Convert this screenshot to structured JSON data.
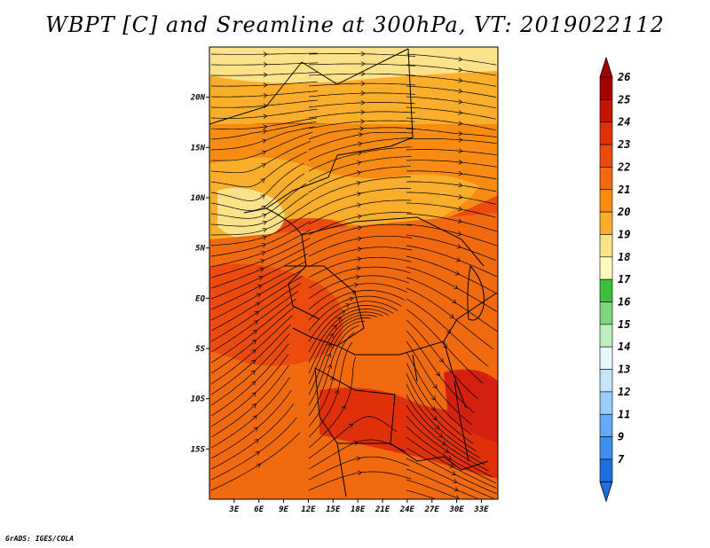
{
  "title": "WBPT [C] and Sreamline at 300hPa, VT: 2019022112",
  "footer": "GrADS: IGES/COLA",
  "chart_data": {
    "type": "heatmap",
    "variable": "WBPT [C]",
    "overlay": "streamlines",
    "level": "300hPa",
    "valid_time": "2019022112",
    "lon_range": [
      0,
      35
    ],
    "lat_range": [
      -20,
      25
    ],
    "lon_ticks": [
      "3E",
      "6E",
      "9E",
      "12E",
      "15E",
      "18E",
      "21E",
      "24E",
      "27E",
      "30E",
      "33E"
    ],
    "lon_values": [
      3,
      6,
      9,
      12,
      15,
      18,
      21,
      24,
      27,
      30,
      33
    ],
    "lat_ticks": [
      "20N",
      "15N",
      "10N",
      "5N",
      "EQ",
      "5S",
      "10S",
      "15S"
    ],
    "lat_values": [
      20,
      15,
      10,
      5,
      0,
      -5,
      -10,
      -15
    ],
    "colorbar_labels": [
      "26",
      "25",
      "24",
      "23",
      "22",
      "21",
      "20",
      "19",
      "18",
      "17",
      "16",
      "15",
      "14",
      "13",
      "12",
      "11",
      "9",
      "7"
    ],
    "colorbar_colors": [
      "#a50000",
      "#c41400",
      "#e0300a",
      "#ec4b0d",
      "#f26a10",
      "#f88c12",
      "#fbae2c",
      "#fde28a",
      "#fffbc0",
      "#3dbf3d",
      "#7ed67e",
      "#bdeebd",
      "#e8f8ff",
      "#c4e6ff",
      "#99ccff",
      "#66aaf7",
      "#3d8ff0",
      "#1f6fe0"
    ],
    "colorbar_top_arrow": "#a50000",
    "colorbar_bottom_arrow": "#1f6fe0",
    "field_summary": "Mostly 21-24 C; cooler (19-21 C) bands in north and around 10N; warmer (23-24 C) over southern Congo/Angola and Mozambique"
  }
}
